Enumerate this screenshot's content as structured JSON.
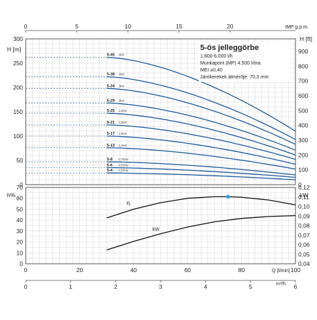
{
  "chart_data": [
    {
      "type": "line",
      "title": "5-ös jelleggörbe",
      "subtitle_lines": [
        "1.800-6.000 l/h",
        "Munkapont (MP) 4.500 l/óra",
        "MEI ≥0,40",
        "Járókerekek átmérője: 70,3 mm"
      ],
      "top_axis": {
        "label": "IMP g.p.m.",
        "ticks": [
          "0",
          "5",
          "10",
          "15",
          "20"
        ],
        "range": [
          0,
          26.4
        ]
      },
      "left_axis": {
        "label": "H [m]",
        "ticks": [
          "0",
          "50",
          "100",
          "150",
          "200",
          "250",
          "300"
        ],
        "range": [
          0,
          300
        ]
      },
      "right_axis": {
        "label": "H [ft]",
        "ticks": [
          "0",
          "100",
          "200",
          "300",
          "400",
          "500",
          "600",
          "700",
          "800",
          "900"
        ],
        "range": [
          0,
          984
        ]
      },
      "x_label": "Q [l/min]",
      "xlim": [
        0,
        100
      ],
      "grid": true,
      "series": [
        {
          "name": "5-45",
          "power": "4kW",
          "h0": 262,
          "h1": 110
        },
        {
          "name": "5-38",
          "power": "4kW",
          "h0": 222,
          "h1": 93
        },
        {
          "name": "5-34",
          "power": "3kW",
          "h0": 198,
          "h1": 83
        },
        {
          "name": "5-29",
          "power": "3kW",
          "h0": 168,
          "h1": 71
        },
        {
          "name": "5-25",
          "power": "2,2kW",
          "h0": 147,
          "h1": 61
        },
        {
          "name": "5-21",
          "power": "2,2kW",
          "h0": 123,
          "h1": 52
        },
        {
          "name": "5-17",
          "power": "1,5kW",
          "h0": 100,
          "h1": 42
        },
        {
          "name": "5-13",
          "power": "1,1kW",
          "h0": 76,
          "h1": 32
        },
        {
          "name": "5-8",
          "power": "0,75kW",
          "h0": 47,
          "h1": 20
        },
        {
          "name": "5-6",
          "power": "0,55kW",
          "h0": 35,
          "h1": 15
        },
        {
          "name": "5-4",
          "power": "0,37kW",
          "h0": 24,
          "h1": 10
        }
      ]
    },
    {
      "type": "line",
      "left_axis": {
        "label": "h%",
        "ticks": [
          "0",
          "10",
          "20",
          "30",
          "40",
          "50",
          "60",
          "70"
        ],
        "range": [
          0,
          70
        ]
      },
      "right_axis": {
        "label": "kW",
        "ticks": [
          "0,04",
          "0,05",
          "0,06",
          "0,07",
          "0,08",
          "0,09",
          "0,10",
          "0,11",
          "0,12"
        ],
        "range": [
          0.04,
          0.12
        ]
      },
      "x_label": "Q [l/min]",
      "x_ticks": [
        "0",
        "20",
        "40",
        "60",
        "80",
        "100"
      ],
      "xlim": [
        0,
        100
      ],
      "bottom_axis": {
        "label": "m³/h",
        "ticks": [
          "0",
          "1",
          "2",
          "3",
          "4",
          "5",
          "6"
        ],
        "range": [
          0,
          6
        ]
      },
      "grid": true,
      "series": [
        {
          "name": "η",
          "axis": "left",
          "points": [
            [
              30,
              42
            ],
            [
              40,
              50
            ],
            [
              50,
              56
            ],
            [
              60,
              60
            ],
            [
              70,
              61.5
            ],
            [
              75,
              61.5
            ],
            [
              80,
              61
            ],
            [
              90,
              58.5
            ],
            [
              100,
              54
            ]
          ]
        },
        {
          "name": "kW",
          "axis": "right",
          "points": [
            [
              30,
              0.0545
            ],
            [
              40,
              0.0635
            ],
            [
              50,
              0.0715
            ],
            [
              60,
              0.0785
            ],
            [
              70,
              0.084
            ],
            [
              80,
              0.0875
            ],
            [
              90,
              0.0895
            ],
            [
              100,
              0.0905
            ]
          ]
        }
      ],
      "marker": {
        "x": 75,
        "y": 61.5,
        "color": "#29a8e0"
      }
    }
  ]
}
